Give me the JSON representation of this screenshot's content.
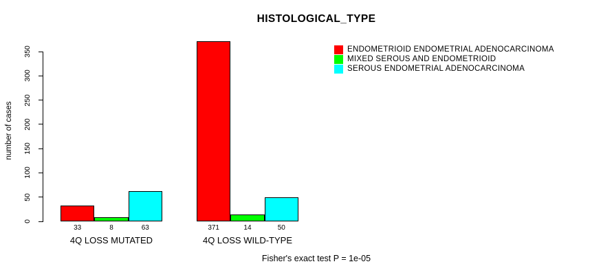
{
  "chart_data": {
    "type": "bar",
    "title": "HISTOLOGICAL_TYPE",
    "ylabel": "number of cases",
    "xlabel": "",
    "ylim": [
      0,
      350
    ],
    "yticks": [
      0,
      50,
      100,
      150,
      200,
      250,
      300,
      350
    ],
    "grid": false,
    "legend_position": "top-right",
    "categories": [
      "4Q LOSS MUTATED",
      "4Q LOSS WILD-TYPE"
    ],
    "series": [
      {
        "name": "ENDOMETRIOID ENDOMETRIAL ADENOCARCINOMA",
        "color": "#FF0000",
        "values": [
          33,
          371
        ]
      },
      {
        "name": "MIXED SEROUS AND ENDOMETRIOID",
        "color": "#00FF00",
        "values": [
          8,
          14
        ]
      },
      {
        "name": "SEROUS ENDOMETRIAL ADENOCARCINOMA",
        "color": "#00FFFF",
        "values": [
          63,
          50
        ]
      }
    ],
    "footnote": "Fisher's exact test P = 1e-05"
  }
}
